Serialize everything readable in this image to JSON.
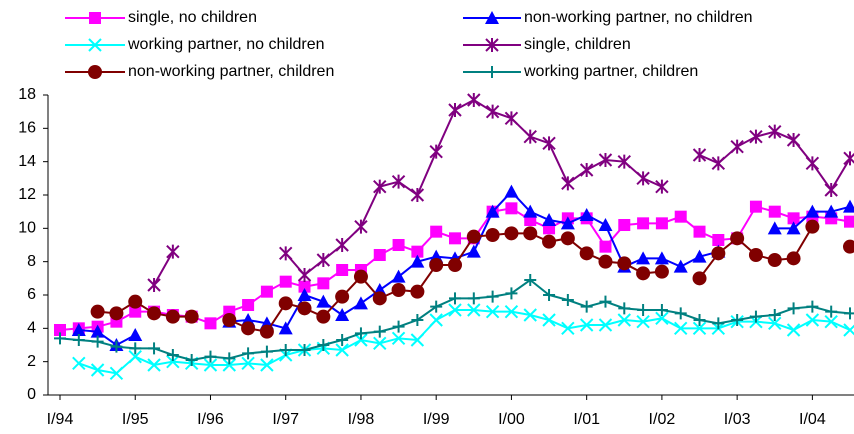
{
  "chart_data": {
    "type": "line",
    "categories": [
      "I/94",
      null,
      null,
      null,
      "I/95",
      null,
      null,
      null,
      "I/96",
      null,
      null,
      null,
      "I/97",
      null,
      null,
      null,
      "I/98",
      null,
      null,
      null,
      "I/99",
      null,
      null,
      null,
      "I/00",
      null,
      null,
      null,
      "I/01",
      null,
      null,
      null,
      "I/02",
      null,
      null,
      null,
      "I/03",
      null,
      null,
      null,
      "I/04",
      null,
      null
    ],
    "ylim": [
      0,
      18
    ],
    "yticks": [
      0,
      2,
      4,
      6,
      8,
      10,
      12,
      14,
      16,
      18
    ],
    "series": [
      {
        "name": "single, no children",
        "color": "#ff00ff",
        "marker": "square",
        "values": [
          3.9,
          4.0,
          4.1,
          4.4,
          5.0,
          5.0,
          4.8,
          4.7,
          4.3,
          5.0,
          5.4,
          6.2,
          6.8,
          6.5,
          6.7,
          7.5,
          7.5,
          8.4,
          9.0,
          8.6,
          9.8,
          9.4,
          9.4,
          11.0,
          11.2,
          10.5,
          10.0,
          10.6,
          10.6,
          8.9,
          10.2,
          10.3,
          10.3,
          10.7,
          9.8,
          9.3,
          9.4,
          11.3,
          11.0,
          10.6,
          10.7,
          10.6,
          10.4
        ]
      },
      {
        "name": "non-working partner, no children",
        "color": "#0000ff",
        "marker": "triangle",
        "values": [
          null,
          3.9,
          3.8,
          3.0,
          3.6,
          null,
          null,
          null,
          null,
          4.4,
          4.5,
          4.3,
          4.0,
          6.0,
          5.6,
          4.8,
          5.5,
          6.3,
          7.1,
          8.0,
          8.3,
          8.2,
          8.6,
          11.0,
          12.2,
          11.0,
          10.5,
          10.3,
          10.8,
          10.2,
          7.7,
          8.2,
          8.2,
          7.7,
          8.3,
          8.6,
          null,
          null,
          10.0,
          10.0,
          11.0,
          11.0,
          11.3
        ]
      },
      {
        "name": "working partner, no children",
        "color": "#00ffff",
        "marker": "x",
        "values": [
          null,
          1.9,
          1.5,
          1.3,
          2.3,
          1.8,
          2.0,
          1.9,
          1.8,
          1.8,
          1.9,
          1.8,
          2.4,
          2.7,
          2.8,
          2.7,
          3.3,
          3.1,
          3.4,
          3.3,
          4.5,
          5.1,
          5.1,
          5.0,
          5.0,
          4.8,
          4.5,
          4.0,
          4.2,
          4.2,
          4.5,
          4.4,
          4.6,
          4.0,
          4.0,
          4.0,
          4.4,
          4.4,
          4.3,
          3.9,
          4.5,
          4.4,
          3.9
        ]
      },
      {
        "name": "single, children",
        "color": "#800080",
        "marker": "star",
        "values": [
          null,
          null,
          null,
          null,
          null,
          6.6,
          8.6,
          null,
          null,
          null,
          null,
          null,
          8.5,
          7.2,
          8.1,
          9.0,
          10.1,
          12.5,
          12.8,
          12.0,
          14.6,
          17.1,
          17.7,
          17.0,
          16.6,
          15.5,
          15.1,
          12.7,
          13.5,
          14.1,
          14.0,
          13.0,
          12.5,
          null,
          14.4,
          13.9,
          14.9,
          15.5,
          15.8,
          15.3,
          13.9,
          12.3,
          14.2
        ]
      },
      {
        "name": "non-working partner, children",
        "color": "#800000",
        "marker": "circle",
        "values": [
          null,
          null,
          5.0,
          4.9,
          5.6,
          4.9,
          4.7,
          4.7,
          null,
          4.5,
          4.0,
          3.8,
          5.5,
          5.2,
          4.7,
          5.9,
          7.1,
          5.8,
          6.3,
          6.2,
          7.8,
          7.8,
          9.5,
          9.6,
          9.7,
          9.7,
          9.2,
          9.4,
          8.5,
          8.0,
          7.9,
          7.3,
          7.4,
          null,
          7.0,
          8.5,
          9.4,
          8.4,
          8.1,
          8.2,
          10.1,
          null,
          8.9
        ]
      },
      {
        "name": "working partner, children",
        "color": "#008080",
        "marker": "plus",
        "values": [
          3.4,
          3.3,
          3.2,
          2.9,
          2.8,
          2.8,
          2.4,
          2.1,
          2.3,
          2.2,
          2.5,
          2.6,
          2.7,
          2.7,
          3.0,
          3.3,
          3.7,
          3.8,
          4.1,
          4.5,
          5.3,
          5.8,
          5.8,
          5.9,
          6.1,
          6.9,
          6.0,
          5.7,
          5.3,
          5.6,
          5.2,
          5.1,
          5.1,
          4.9,
          4.5,
          4.3,
          4.5,
          4.7,
          4.8,
          5.2,
          5.3,
          5.0,
          4.9
        ]
      }
    ]
  }
}
